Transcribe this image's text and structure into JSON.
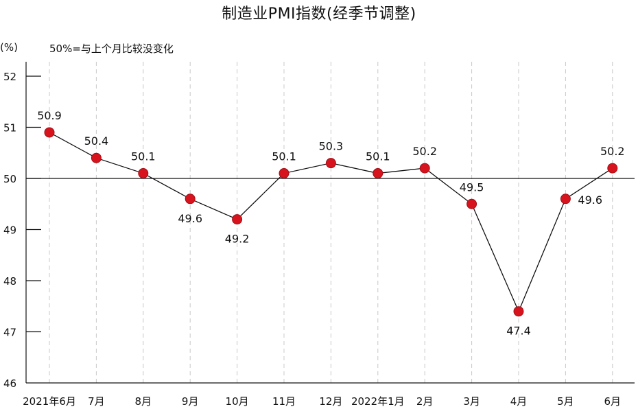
{
  "chart_data": {
    "type": "line",
    "title": "制造业PMI指数(经季节调整)",
    "unit_label": "(%)",
    "reference_note": "50%=与上个月比较没变化",
    "reference_value": 50,
    "categories": [
      "2021年6月",
      "7月",
      "8月",
      "9月",
      "10月",
      "11月",
      "12月",
      "2022年1月",
      "2月",
      "3月",
      "4月",
      "5月",
      "6月"
    ],
    "series": [
      {
        "values": [
          50.9,
          50.4,
          50.1,
          49.6,
          49.2,
          50.1,
          50.3,
          50.1,
          50.2,
          49.5,
          47.4,
          49.6,
          50.2
        ]
      }
    ],
    "data_labels": [
      "50.9",
      "50.4",
      "50.1",
      "49.6",
      "49.2",
      "50.1",
      "50.3",
      "50.1",
      "50.2",
      "49.5",
      "47.4",
      "49.6",
      "50.2"
    ],
    "yticks": [
      46,
      47,
      48,
      49,
      50,
      51,
      52
    ],
    "ylim": [
      46,
      52.6
    ],
    "grid": "vertical dashed",
    "colors": {
      "marker": "#d7141e",
      "marker_edge": "#a30d14",
      "line": "#111111",
      "grid": "#c8c8c8"
    }
  }
}
